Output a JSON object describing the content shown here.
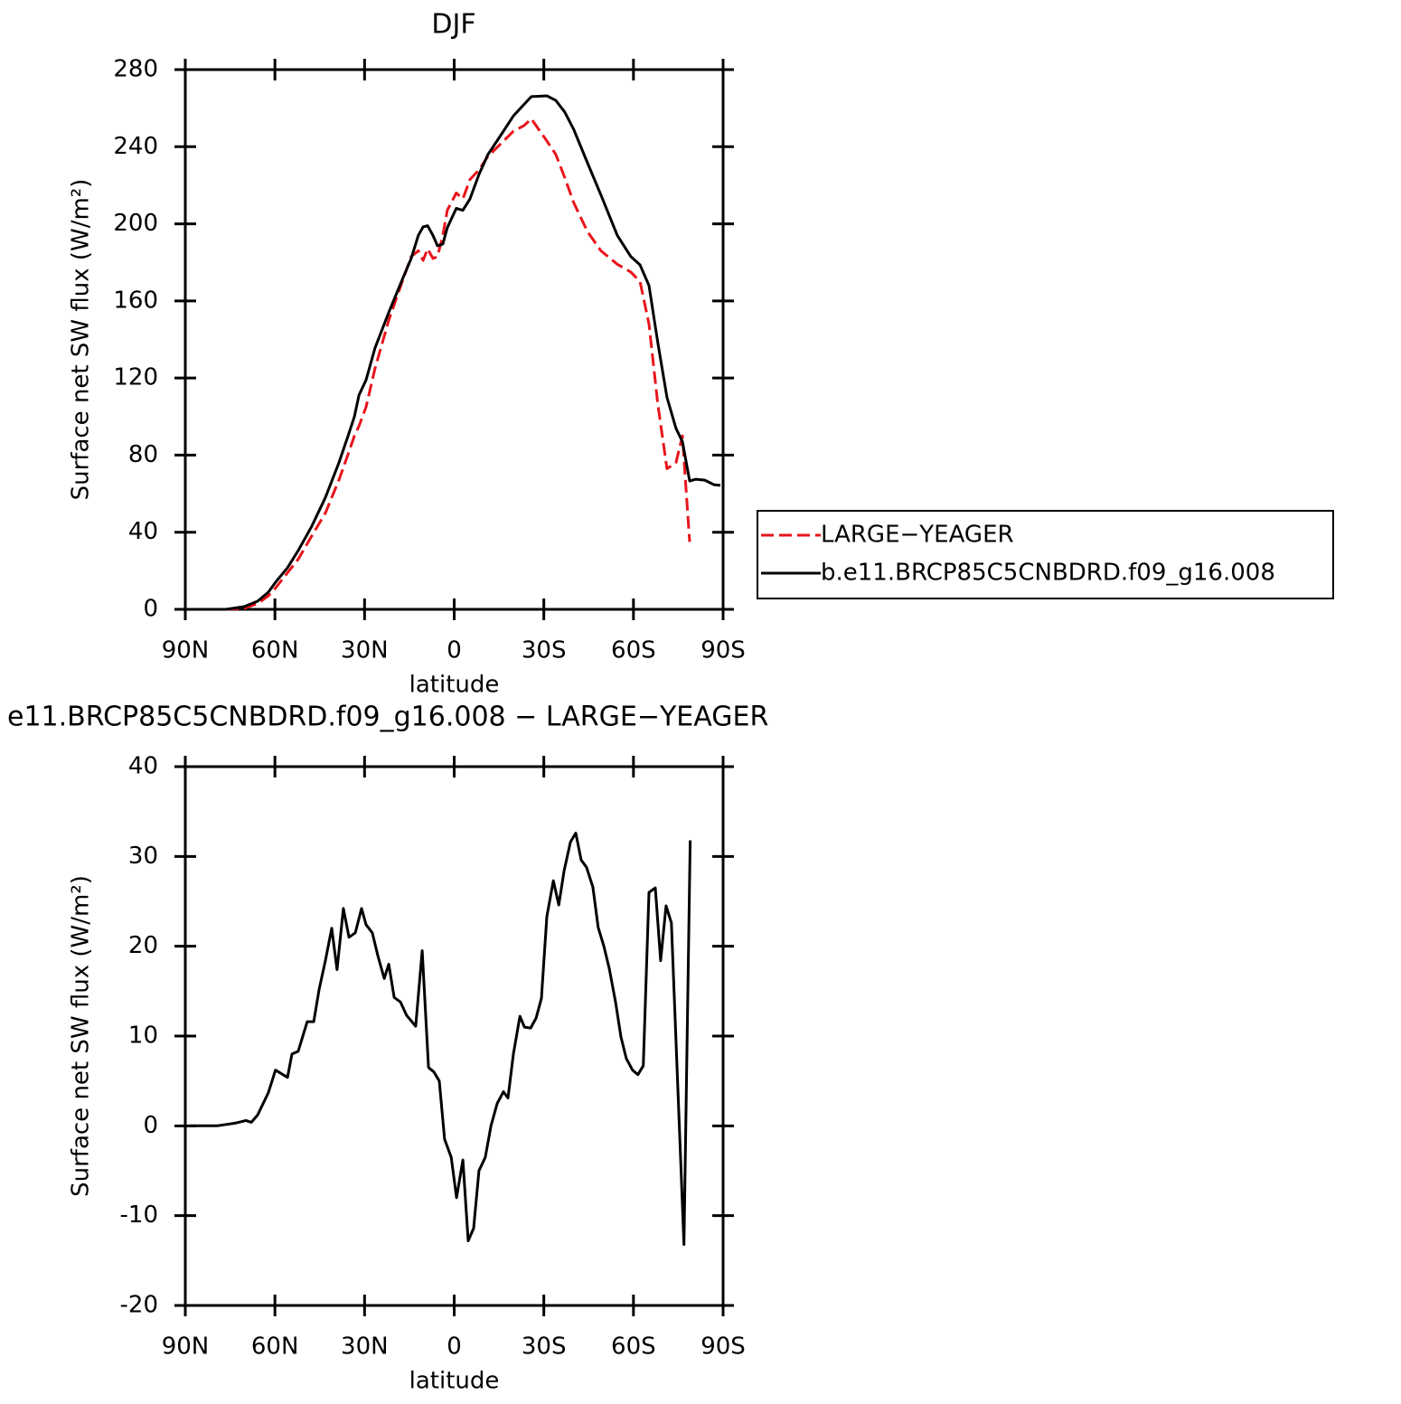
{
  "chart_data": [
    {
      "type": "line",
      "title": "DJF",
      "xlabel": "latitude",
      "ylabel": "Surface net SW flux (W/m²)",
      "x": [
        88.5,
        76.4,
        70.3,
        65.8,
        62.2,
        59.8,
        55.8,
        52.2,
        47.7,
        43.1,
        38.6,
        35.6,
        33.4,
        31.9,
        29.5,
        26.5,
        21.9,
        17.4,
        14.4,
        12,
        10.4,
        8.9,
        7.1,
        5.6,
        3.8,
        2.3,
        -0.7,
        -2.9,
        -5.3,
        -8.3,
        -11.3,
        -15.9,
        -19.8,
        -23.4,
        -25.8,
        -31,
        -34,
        -37,
        -40,
        -44.6,
        -49.1,
        -54.6,
        -59.1,
        -62.2,
        -65.2,
        -68.2,
        -71.2,
        -74.2,
        -76.4,
        -78.8,
        -80.9,
        -83.9,
        -86.9,
        -89.1
      ],
      "series": [
        {
          "name": "LARGE−YEAGER",
          "color": "#e8141b",
          "line_style": "dashed",
          "values": [
            0,
            0,
            0.5,
            3,
            7,
            11,
            19,
            26,
            38,
            50,
            67,
            80,
            90,
            95,
            105,
            125,
            150,
            170,
            183,
            186,
            181,
            187,
            182,
            183,
            194,
            207,
            216,
            213,
            223,
            228,
            235,
            242,
            248,
            251,
            254.5,
            243,
            236,
            224,
            211,
            196,
            186,
            179,
            175,
            170,
            148,
            106,
            73,
            76,
            90,
            35,
            null,
            null,
            null,
            null
          ]
        },
        {
          "name": "b.e11.BRCP85C5CNBDRD.f09_g16.008",
          "color": "#000000",
          "line_style": "solid",
          "values": [
            0,
            0,
            1.4,
            4.2,
            8.9,
            14,
            21.6,
            30.5,
            43,
            58,
            76,
            89.6,
            100,
            111,
            119,
            135.6,
            154,
            171,
            182,
            194,
            198.4,
            199,
            194,
            188.6,
            189.5,
            198,
            208,
            207,
            213,
            225.6,
            236,
            246.7,
            256,
            262,
            266,
            266.4,
            264,
            258,
            249,
            231.7,
            215,
            194,
            183,
            178.7,
            168,
            138,
            110,
            94,
            87,
            66.6,
            67.5,
            67,
            64.7,
            64.3
          ]
        }
      ],
      "xlim": [
        90,
        -90
      ],
      "xticks": [
        {
          "value": 90,
          "label": "90N"
        },
        {
          "value": 60,
          "label": "60N"
        },
        {
          "value": 30,
          "label": "30N"
        },
        0,
        {
          "value": -30,
          "label": "30S"
        },
        {
          "value": -60,
          "label": "60S"
        },
        {
          "value": -90,
          "label": "90S"
        }
      ],
      "ylim": [
        0,
        280
      ],
      "yticks": [
        0,
        40,
        80,
        120,
        160,
        200,
        240,
        280
      ],
      "legend": "right"
    },
    {
      "type": "line",
      "title": "e11.BRCP85C5CNBDRD.f09_g16.008 − LARGE−YEAGER",
      "xlabel": "latitude",
      "ylabel": "Surface net SW flux (W/m²)",
      "x": [
        88.5,
        79.4,
        73.4,
        69.7,
        67.9,
        65.8,
        62.2,
        59.8,
        55.8,
        54.3,
        52.2,
        49.2,
        47.0,
        45.2,
        43.1,
        41.0,
        39.2,
        37.1,
        35.2,
        33.1,
        31.0,
        29.5,
        27.4,
        25.6,
        23.4,
        21.9,
        20.1,
        18.0,
        15.9,
        12.9,
        10.7,
        8.6,
        6.8,
        5.0,
        3.2,
        1.0,
        -0.8,
        -2.9,
        -4.7,
        -6.5,
        -8.3,
        -10.4,
        -12.3,
        -14.4,
        -16.5,
        -18.0,
        -19.8,
        -22.0,
        -23.5,
        -25.6,
        -27.4,
        -29.2,
        -31.0,
        -33.2,
        -35.0,
        -36.8,
        -38.9,
        -40.7,
        -42.5,
        -44.3,
        -46.4,
        -48.2,
        -50.1,
        -51.9,
        -54.0,
        -55.8,
        -57.6,
        -59.7,
        -61.5,
        -63.3,
        -65.2,
        -67.3,
        -69.1,
        -70.9,
        -72.7,
        -76.9,
        -79.0
      ],
      "color": "#000000",
      "values": [
        0,
        0,
        0.3,
        0.6,
        0.4,
        1.2,
        3.7,
        6.2,
        5.4,
        8,
        8.3,
        11.6,
        11.6,
        15.2,
        18.4,
        22,
        17.4,
        24.2,
        21,
        21.5,
        24.2,
        22.4,
        21.5,
        19,
        16.4,
        18,
        14.3,
        13.8,
        12.3,
        11.1,
        19.5,
        6.5,
        6,
        5,
        -1.5,
        -3.5,
        -8,
        -3.8,
        -12.8,
        -11.4,
        -5,
        -3.5,
        0,
        2.5,
        3.8,
        3.1,
        8,
        12.2,
        11,
        10.9,
        12,
        14.2,
        23.3,
        27.3,
        24.6,
        28.4,
        31.6,
        32.6,
        29.6,
        28.8,
        26.6,
        22.1,
        20,
        17.5,
        13.8,
        9.9,
        7.5,
        6.2,
        5.7,
        6.7,
        26,
        26.5,
        18.4,
        24.5,
        22.6,
        -13.2,
        31.8
      ],
      "xlim": [
        90,
        -90
      ],
      "xticks": [
        {
          "value": 90,
          "label": "90N"
        },
        {
          "value": 60,
          "label": "60N"
        },
        {
          "value": 30,
          "label": "30N"
        },
        0,
        {
          "value": -30,
          "label": "30S"
        },
        {
          "value": -60,
          "label": "60S"
        },
        {
          "value": -90,
          "label": "90S"
        }
      ],
      "ylim": [
        -20,
        40
      ],
      "yticks": [
        -20,
        -10,
        0,
        10,
        20,
        30,
        40
      ]
    }
  ]
}
